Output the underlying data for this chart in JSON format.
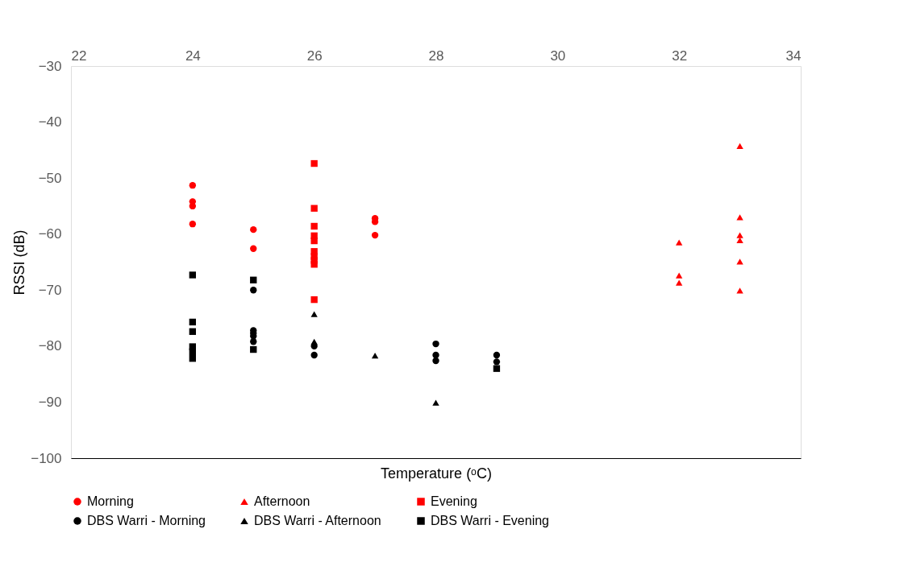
{
  "chart_data": {
    "type": "scatter",
    "xlabel": "Temperature (ᵒC)",
    "ylabel": "RSSI (dB)",
    "xlim": [
      22,
      34
    ],
    "xticks": [
      22,
      24,
      26,
      28,
      30,
      32,
      34
    ],
    "ylim": [
      -100,
      -30
    ],
    "yticks": [
      -100,
      -90,
      -80,
      -70,
      -60,
      -50,
      -40,
      -30
    ],
    "grid": false,
    "legend": "bottom",
    "series": [
      {
        "name": "Morning",
        "color": "#ff0000",
        "marker": "circle",
        "x": [
          24,
          24,
          24,
          24,
          25,
          25,
          27,
          27,
          27
        ],
        "values": [
          -51.3,
          -54.2,
          -55.0,
          -58.2,
          -59.2,
          -62.6,
          -57.2,
          -57.8,
          -60.2
        ]
      },
      {
        "name": "Afternoon",
        "color": "#ff0000",
        "marker": "triangle",
        "x": [
          32,
          32,
          32,
          33,
          33,
          33,
          33,
          33,
          33
        ],
        "values": [
          -61.5,
          -67.4,
          -68.7,
          -44.3,
          -57.0,
          -60.2,
          -61.1,
          -64.9,
          -70.1
        ]
      },
      {
        "name": "Evening",
        "color": "#ff0000",
        "marker": "square",
        "x": [
          26,
          26,
          26,
          26,
          26,
          26,
          26,
          26,
          26,
          26
        ],
        "values": [
          -47.4,
          -55.4,
          -58.6,
          -60.3,
          -61.2,
          -63.1,
          -64.0,
          -64.7,
          -65.4,
          -71.7
        ]
      },
      {
        "name": "DBS Warri - Morning",
        "color": "#000000",
        "marker": "circle",
        "x": [
          25,
          25,
          25,
          25,
          25,
          26,
          26,
          28,
          28,
          28,
          29,
          29
        ],
        "values": [
          -70.0,
          -77.2,
          -77.7,
          -78.2,
          -79.2,
          -80.0,
          -81.6,
          -79.6,
          -81.6,
          -82.6,
          -81.6,
          -82.8
        ]
      },
      {
        "name": "DBS Warri - Afternoon",
        "color": "#000000",
        "marker": "triangle",
        "x": [
          26,
          26,
          27,
          28
        ],
        "values": [
          -74.3,
          -79.2,
          -81.7,
          -90.1
        ]
      },
      {
        "name": "DBS Warri - Evening",
        "color": "#000000",
        "marker": "square",
        "x": [
          24,
          24,
          24,
          24,
          24,
          24,
          25,
          25,
          29
        ],
        "values": [
          -67.3,
          -75.7,
          -77.4,
          -80.1,
          -81.0,
          -82.2,
          -68.2,
          -80.6,
          -84.0
        ]
      }
    ]
  }
}
